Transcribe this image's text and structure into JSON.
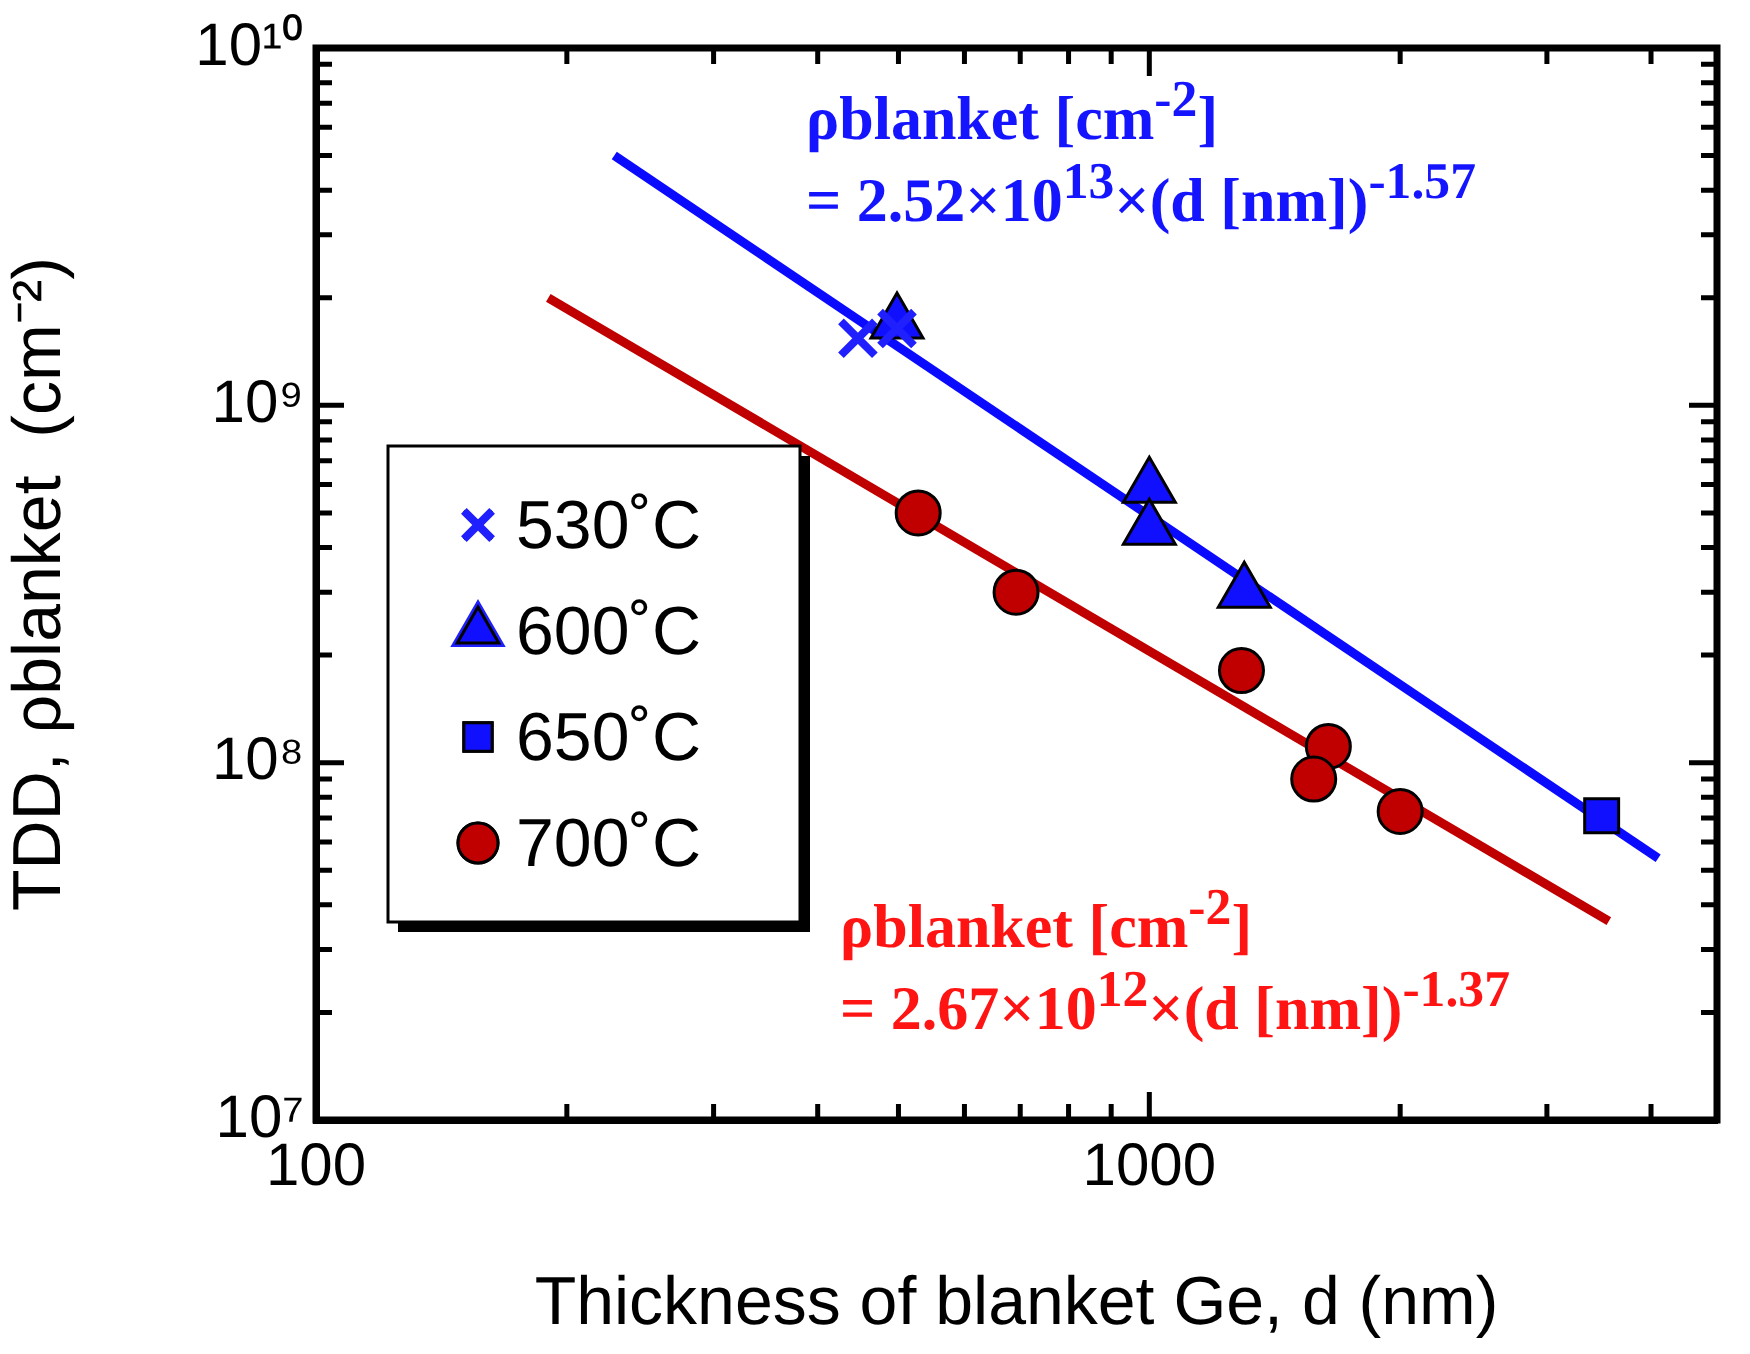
{
  "chart_data": {
    "type": "scatter",
    "xlabel": "Thickness of blanket Ge, d (nm)",
    "ylabel": "TDD, ρblanket  (cm⁻²)",
    "log": "xy",
    "grid": false,
    "legend": "left",
    "xlim": [
      100,
      4800
    ],
    "ylim": [
      10000000,
      10000000000
    ],
    "xticks": [
      100,
      {
        "value": 200,
        "label": null
      },
      {
        "value": 300,
        "label": null
      },
      {
        "value": 400,
        "label": null
      },
      {
        "value": 500,
        "label": null
      },
      {
        "value": 600,
        "label": null
      },
      {
        "value": 700,
        "label": null
      },
      {
        "value": 800,
        "label": null
      },
      {
        "value": 900,
        "label": null
      },
      1000,
      {
        "value": 2000,
        "label": null
      },
      {
        "value": 3000,
        "label": null
      },
      {
        "value": 4000,
        "label": null
      }
    ],
    "yticks": [
      {
        "value": 10000000,
        "label": "10⁷"
      },
      {
        "value": 20000000,
        "label": null
      },
      {
        "value": 30000000,
        "label": null
      },
      {
        "value": 40000000,
        "label": null
      },
      {
        "value": 50000000,
        "label": null
      },
      {
        "value": 60000000,
        "label": null
      },
      {
        "value": 70000000,
        "label": null
      },
      {
        "value": 80000000,
        "label": null
      },
      {
        "value": 90000000,
        "label": null
      },
      {
        "value": 100000000,
        "label": "10⁸"
      },
      {
        "value": 200000000,
        "label": null
      },
      {
        "value": 300000000,
        "label": null
      },
      {
        "value": 400000000,
        "label": null
      },
      {
        "value": 500000000,
        "label": null
      },
      {
        "value": 600000000,
        "label": null
      },
      {
        "value": 700000000,
        "label": null
      },
      {
        "value": 800000000,
        "label": null
      },
      {
        "value": 900000000,
        "label": null
      },
      {
        "value": 1000000000,
        "label": "10⁹"
      },
      {
        "value": 2000000000,
        "label": null
      },
      {
        "value": 3000000000,
        "label": null
      },
      {
        "value": 4000000000,
        "label": null
      },
      {
        "value": 5000000000,
        "label": null
      },
      {
        "value": 6000000000,
        "label": null
      },
      {
        "value": 7000000000,
        "label": null
      },
      {
        "value": 8000000000,
        "label": null
      },
      {
        "value": 9000000000,
        "label": null
      },
      {
        "value": 10000000000,
        "label": "10¹⁰"
      }
    ],
    "series": [
      {
        "type": "line",
        "color": "#0a0aff",
        "marker": "none",
        "line_style": "solid",
        "x": [
          228,
          4080
        ],
        "values": [
          5000000000,
          54000000
        ]
      },
      {
        "type": "line",
        "color": "#c00000",
        "marker": "none",
        "line_style": "solid",
        "x": [
          190,
          3560
        ],
        "values": [
          2000000000,
          36000000
        ]
      },
      {
        "name": "530˚C",
        "color": "#2020ff",
        "marker": "cross",
        "x": [
          447,
          498
        ],
        "values": [
          1540000000,
          1640000000
        ]
      },
      {
        "name": "600˚C",
        "color": "#1010ff",
        "marker": "triangle",
        "x": [
          498,
          1000,
          1000,
          1300
        ],
        "values": [
          1700000000,
          590000000,
          450000000,
          300000000
        ]
      },
      {
        "name": "650˚C",
        "color": "#1010ff",
        "marker": "square",
        "x": [
          3490
        ],
        "values": [
          71000000
        ]
      },
      {
        "name": "700˚C",
        "color": "#c00000",
        "marker": "circle",
        "x": [
          528,
          692,
          1290,
          1640,
          1575,
          2000
        ],
        "values": [
          500000000,
          300000000,
          181000000,
          111000000,
          90000000,
          73000000
        ]
      }
    ],
    "annotations": [
      "ρblanket [cm$^{-2}$]\n= 2.52×10$^{13}$×(d [nm])$^{-1.57}$",
      "ρblanket [cm$^{-2}$]\n= 2.67×10$^{12}$×(d [nm])$^{-1.37}$"
    ]
  }
}
